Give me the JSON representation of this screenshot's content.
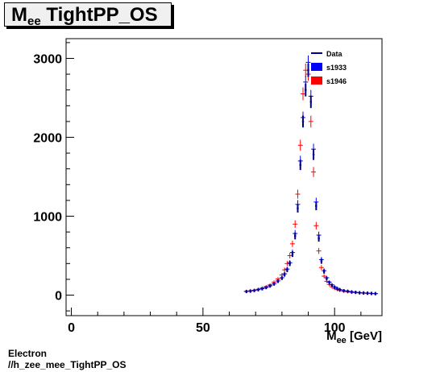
{
  "title": {
    "main": "M",
    "sub": "ee",
    "rest": " TightPP_OS"
  },
  "footer": {
    "line1": "Electron",
    "line2": "//h_zee_mee_TightPP_OS"
  },
  "chart_data": {
    "type": "scatter",
    "xlabel_main": "M",
    "xlabel_sub": "ee",
    "xlabel_rest": " [GeV]",
    "xlim": [
      -2,
      118
    ],
    "ylim": [
      -260,
      3250
    ],
    "x_ticks": [
      0,
      50,
      100
    ],
    "y_ticks": [
      0,
      1000,
      2000,
      3000
    ],
    "legend": {
      "placement": "top-right",
      "entries": [
        {
          "label": "Data",
          "color": "#00008b",
          "style": "line"
        },
        {
          "label": "s1933",
          "color": "#0000ff",
          "style": "box"
        },
        {
          "label": "s1946",
          "color": "#ff0000",
          "style": "box"
        }
      ]
    },
    "series": [
      {
        "name": "Data",
        "color": "#00008b",
        "x": [
          66.5,
          68,
          69.5,
          71,
          72.5,
          74,
          75.5,
          77,
          78.5,
          80,
          81,
          82,
          83,
          84,
          85,
          86,
          87,
          88,
          89,
          90,
          91,
          92,
          93,
          94,
          95,
          96,
          97,
          98,
          99,
          100,
          101,
          102,
          103.5,
          105,
          106.5,
          108,
          109.5,
          111,
          112.5,
          114,
          115.5
        ],
        "y": [
          45,
          50,
          58,
          68,
          80,
          95,
          115,
          140,
          175,
          215,
          260,
          320,
          400,
          520,
          750,
          1100,
          1650,
          2200,
          2600,
          2850,
          2450,
          1780,
          1130,
          720,
          430,
          300,
          210,
          160,
          125,
          100,
          82,
          68,
          55,
          48,
          40,
          35,
          30,
          27,
          24,
          21,
          19
        ]
      },
      {
        "name": "s1933",
        "color": "#0000ff",
        "x": [
          66.5,
          68,
          69.5,
          71,
          72.5,
          74,
          75.5,
          77,
          78.5,
          80,
          81,
          82,
          83,
          84,
          85,
          86,
          87,
          88,
          89,
          90,
          91,
          92,
          93,
          94,
          95,
          96,
          97,
          98,
          99,
          100,
          101,
          102,
          103.5,
          105,
          106.5,
          108,
          109.5,
          111,
          112.5,
          114,
          115.5
        ],
        "y": [
          48,
          52,
          60,
          70,
          82,
          98,
          118,
          145,
          180,
          220,
          270,
          330,
          410,
          540,
          780,
          1150,
          1700,
          2250,
          2700,
          2950,
          2520,
          1850,
          1180,
          760,
          450,
          310,
          220,
          165,
          130,
          104,
          85,
          70,
          57,
          50,
          42,
          36,
          31,
          28,
          25,
          22,
          20
        ]
      },
      {
        "name": "s1946",
        "color": "#ff0000",
        "x": [
          66.5,
          68,
          69.5,
          71,
          72.5,
          74,
          75.5,
          77,
          78.5,
          80,
          81,
          82,
          83,
          84,
          85,
          86,
          87,
          88,
          89,
          90,
          91,
          92,
          93,
          94,
          95,
          96,
          97,
          98,
          99,
          100,
          101,
          102,
          103.5,
          105,
          106.5,
          108,
          109.5,
          111,
          112.5,
          114,
          115.5
        ],
        "y": [
          46,
          55,
          62,
          74,
          90,
          108,
          130,
          165,
          205,
          255,
          320,
          400,
          500,
          650,
          900,
          1280,
          1900,
          2550,
          2850,
          2800,
          2200,
          1560,
          880,
          560,
          350,
          240,
          175,
          135,
          105,
          85,
          70,
          58,
          48,
          42,
          36,
          32,
          28,
          25,
          22,
          20,
          18
        ]
      }
    ]
  }
}
